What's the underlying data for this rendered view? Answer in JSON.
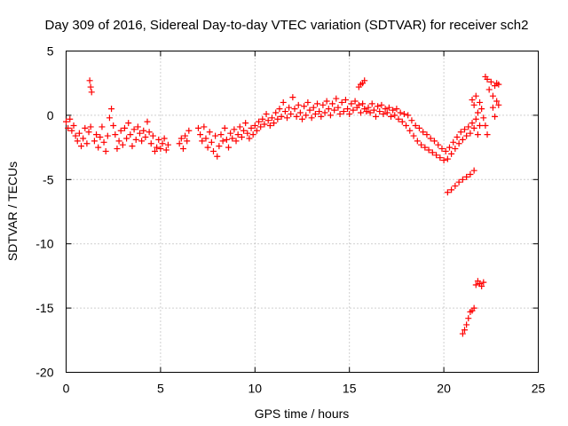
{
  "chart_data": {
    "type": "scatter",
    "title": "Day 309 of 2016, Sidereal Day-to-day VTEC variation (SDTVAR) for receiver sch2",
    "xlabel": "GPS time / hours",
    "ylabel": "SDTVAR / TECUs",
    "xlim": [
      0,
      25
    ],
    "ylim": [
      -20,
      5
    ],
    "xticks": [
      0,
      5,
      10,
      15,
      20,
      25
    ],
    "yticks": [
      5,
      0,
      -5,
      -10,
      -15,
      -20
    ],
    "grid": true,
    "marker": "plus",
    "color": "#ff0000",
    "series": [
      {
        "name": "SDTVAR",
        "values": [
          [
            0.0,
            -0.5
          ],
          [
            0.1,
            -1.0
          ],
          [
            0.2,
            -0.3
          ],
          [
            0.3,
            -1.2
          ],
          [
            0.4,
            -0.8
          ],
          [
            0.5,
            -1.6
          ],
          [
            0.6,
            -2.0
          ],
          [
            0.7,
            -1.4
          ],
          [
            0.8,
            -2.4
          ],
          [
            0.9,
            -1.8
          ],
          [
            1.0,
            -1.0
          ],
          [
            1.1,
            -2.2
          ],
          [
            1.2,
            -1.3
          ],
          [
            1.3,
            -0.9
          ],
          [
            1.25,
            2.7
          ],
          [
            1.3,
            2.2
          ],
          [
            1.35,
            1.8
          ],
          [
            1.5,
            -2.0
          ],
          [
            1.6,
            -1.5
          ],
          [
            1.7,
            -2.5
          ],
          [
            1.8,
            -1.7
          ],
          [
            1.9,
            -0.9
          ],
          [
            2.0,
            -2.1
          ],
          [
            2.1,
            -2.8
          ],
          [
            2.2,
            -1.6
          ],
          [
            2.3,
            -0.2
          ],
          [
            2.4,
            0.5
          ],
          [
            2.5,
            -0.8
          ],
          [
            2.6,
            -1.5
          ],
          [
            2.7,
            -2.6
          ],
          [
            2.8,
            -2.0
          ],
          [
            2.9,
            -1.2
          ],
          [
            3.0,
            -2.3
          ],
          [
            3.1,
            -1.0
          ],
          [
            3.2,
            -1.8
          ],
          [
            3.3,
            -0.6
          ],
          [
            3.4,
            -1.5
          ],
          [
            3.5,
            -2.4
          ],
          [
            3.6,
            -1.1
          ],
          [
            3.7,
            -1.9
          ],
          [
            3.8,
            -0.9
          ],
          [
            3.9,
            -1.4
          ],
          [
            4.0,
            -2.0
          ],
          [
            4.1,
            -1.2
          ],
          [
            4.2,
            -1.7
          ],
          [
            4.3,
            -0.5
          ],
          [
            4.4,
            -1.3
          ],
          [
            4.5,
            -2.2
          ],
          [
            4.6,
            -1.6
          ],
          [
            4.7,
            -2.8
          ],
          [
            4.8,
            -2.5
          ],
          [
            4.9,
            -1.9
          ],
          [
            5.0,
            -2.6
          ],
          [
            5.1,
            -2.2
          ],
          [
            5.2,
            -1.8
          ],
          [
            5.3,
            -2.7
          ],
          [
            5.4,
            -2.3
          ],
          [
            6.0,
            -2.2
          ],
          [
            6.1,
            -1.8
          ],
          [
            6.2,
            -2.6
          ],
          [
            6.3,
            -1.6
          ],
          [
            6.4,
            -2.0
          ],
          [
            6.5,
            -1.2
          ],
          [
            7.0,
            -1.0
          ],
          [
            7.1,
            -1.5
          ],
          [
            7.2,
            -2.0
          ],
          [
            7.3,
            -0.9
          ],
          [
            7.4,
            -1.8
          ],
          [
            7.5,
            -2.5
          ],
          [
            7.6,
            -1.3
          ],
          [
            7.7,
            -2.1
          ],
          [
            7.8,
            -2.8
          ],
          [
            7.9,
            -1.6
          ],
          [
            8.0,
            -3.2
          ],
          [
            8.1,
            -2.4
          ],
          [
            8.2,
            -1.5
          ],
          [
            8.3,
            -2.0
          ],
          [
            8.4,
            -1.0
          ],
          [
            8.5,
            -1.9
          ],
          [
            8.6,
            -2.5
          ],
          [
            8.7,
            -1.4
          ],
          [
            8.8,
            -1.8
          ],
          [
            8.9,
            -1.1
          ],
          [
            9.0,
            -2.0
          ],
          [
            9.1,
            -1.5
          ],
          [
            9.2,
            -0.9
          ],
          [
            9.3,
            -1.7
          ],
          [
            9.4,
            -1.2
          ],
          [
            9.5,
            -0.6
          ],
          [
            9.6,
            -1.4
          ],
          [
            9.7,
            -1.8
          ],
          [
            9.8,
            -1.0
          ],
          [
            9.9,
            -1.5
          ],
          [
            10.0,
            -0.8
          ],
          [
            10.1,
            -1.2
          ],
          [
            10.2,
            -0.5
          ],
          [
            10.3,
            -0.9
          ],
          [
            10.4,
            -0.3
          ],
          [
            10.5,
            -0.7
          ],
          [
            10.6,
            0.1
          ],
          [
            10.7,
            -0.4
          ],
          [
            10.8,
            -0.8
          ],
          [
            10.9,
            -0.2
          ],
          [
            11.0,
            -0.6
          ],
          [
            11.1,
            0.2
          ],
          [
            11.2,
            -0.3
          ],
          [
            11.3,
            0.5
          ],
          [
            11.4,
            -0.1
          ],
          [
            11.5,
            1.0
          ],
          [
            11.6,
            0.3
          ],
          [
            11.7,
            -0.2
          ],
          [
            11.8,
            0.6
          ],
          [
            11.9,
            0.1
          ],
          [
            12.0,
            1.4
          ],
          [
            12.1,
            0.5
          ],
          [
            12.2,
            -0.1
          ],
          [
            12.3,
            0.8
          ],
          [
            12.4,
            0.2
          ],
          [
            12.5,
            -0.3
          ],
          [
            12.6,
            0.7
          ],
          [
            12.7,
            0.0
          ],
          [
            12.8,
            1.0
          ],
          [
            12.9,
            0.4
          ],
          [
            13.0,
            -0.2
          ],
          [
            13.1,
            0.6
          ],
          [
            13.2,
            0.1
          ],
          [
            13.3,
            0.9
          ],
          [
            13.4,
            0.3
          ],
          [
            13.5,
            -0.1
          ],
          [
            13.6,
            0.8
          ],
          [
            13.7,
            0.2
          ],
          [
            13.8,
            1.1
          ],
          [
            13.9,
            0.5
          ],
          [
            14.0,
            0.0
          ],
          [
            14.1,
            0.9
          ],
          [
            14.2,
            0.4
          ],
          [
            14.3,
            1.3
          ],
          [
            14.4,
            0.6
          ],
          [
            14.5,
            0.1
          ],
          [
            14.6,
            1.0
          ],
          [
            14.7,
            0.3
          ],
          [
            14.8,
            1.2
          ],
          [
            14.9,
            0.5
          ],
          [
            15.0,
            0.1
          ],
          [
            15.1,
            0.9
          ],
          [
            15.2,
            0.4
          ],
          [
            15.3,
            1.1
          ],
          [
            15.4,
            0.6
          ],
          [
            15.5,
            0.8
          ],
          [
            15.6,
            0.2
          ],
          [
            15.7,
            0.9
          ],
          [
            15.8,
            0.5
          ],
          [
            15.9,
            0.3
          ],
          [
            15.5,
            2.2
          ],
          [
            15.6,
            2.4
          ],
          [
            15.7,
            2.5
          ],
          [
            15.8,
            2.7
          ],
          [
            16.0,
            0.6
          ],
          [
            16.1,
            0.2
          ],
          [
            16.2,
            0.9
          ],
          [
            16.3,
            0.4
          ],
          [
            16.4,
            -0.1
          ],
          [
            16.5,
            0.7
          ],
          [
            16.6,
            0.3
          ],
          [
            16.7,
            0.8
          ],
          [
            16.8,
            0.1
          ],
          [
            16.9,
            0.5
          ],
          [
            17.0,
            0.2
          ],
          [
            17.1,
            0.6
          ],
          [
            17.2,
            -0.1
          ],
          [
            17.3,
            0.4
          ],
          [
            17.4,
            0.0
          ],
          [
            17.5,
            0.5
          ],
          [
            17.6,
            -0.3
          ],
          [
            17.7,
            0.2
          ],
          [
            17.8,
            -0.5
          ],
          [
            17.9,
            0.1
          ],
          [
            18.0,
            -0.8
          ],
          [
            18.1,
            0.0
          ],
          [
            18.2,
            -1.2
          ],
          [
            18.3,
            -0.4
          ],
          [
            18.4,
            -1.6
          ],
          [
            18.5,
            -0.8
          ],
          [
            18.6,
            -2.0
          ],
          [
            18.7,
            -1.0
          ],
          [
            18.8,
            -2.3
          ],
          [
            18.9,
            -1.3
          ],
          [
            19.0,
            -2.5
          ],
          [
            19.1,
            -1.5
          ],
          [
            19.2,
            -2.7
          ],
          [
            19.3,
            -1.8
          ],
          [
            19.4,
            -2.9
          ],
          [
            19.5,
            -2.0
          ],
          [
            19.6,
            -3.1
          ],
          [
            19.7,
            -2.3
          ],
          [
            19.8,
            -3.3
          ],
          [
            19.9,
            -2.6
          ],
          [
            20.0,
            -3.5
          ],
          [
            20.1,
            -2.8
          ],
          [
            20.2,
            -3.4
          ],
          [
            20.3,
            -2.5
          ],
          [
            20.4,
            -3.0
          ],
          [
            20.5,
            -2.1
          ],
          [
            20.6,
            -2.6
          ],
          [
            20.7,
            -1.7
          ],
          [
            20.8,
            -2.2
          ],
          [
            20.9,
            -1.3
          ],
          [
            21.0,
            -1.9
          ],
          [
            21.1,
            -1.1
          ],
          [
            21.2,
            -1.6
          ],
          [
            21.3,
            -0.9
          ],
          [
            21.4,
            -1.4
          ],
          [
            21.5,
            -0.6
          ],
          [
            21.6,
            -1.0
          ],
          [
            21.7,
            -0.3
          ],
          [
            21.8,
            -1.5
          ],
          [
            21.9,
            -0.8
          ],
          [
            21.5,
            1.2
          ],
          [
            21.6,
            0.8
          ],
          [
            21.7,
            1.5
          ],
          [
            21.8,
            0.2
          ],
          [
            21.9,
            1.0
          ],
          [
            22.0,
            0.5
          ],
          [
            22.1,
            -0.2
          ],
          [
            22.2,
            -0.8
          ],
          [
            22.3,
            -1.5
          ],
          [
            22.2,
            3.0
          ],
          [
            22.3,
            2.8
          ],
          [
            22.4,
            2.0
          ],
          [
            22.5,
            2.6
          ],
          [
            22.6,
            1.5
          ],
          [
            22.7,
            2.3
          ],
          [
            22.8,
            2.5
          ],
          [
            22.9,
            2.4
          ],
          [
            22.6,
            0.6
          ],
          [
            22.7,
            -0.1
          ],
          [
            22.8,
            1.1
          ],
          [
            22.9,
            0.8
          ],
          [
            20.2,
            -6.0
          ],
          [
            20.4,
            -5.8
          ],
          [
            20.6,
            -5.5
          ],
          [
            20.8,
            -5.2
          ],
          [
            21.0,
            -5.0
          ],
          [
            21.2,
            -4.8
          ],
          [
            21.4,
            -4.6
          ],
          [
            21.6,
            -4.3
          ],
          [
            21.0,
            -17.0
          ],
          [
            21.1,
            -16.7
          ],
          [
            21.2,
            -16.3
          ],
          [
            21.3,
            -15.8
          ],
          [
            21.4,
            -15.3
          ],
          [
            21.5,
            -15.2
          ],
          [
            21.6,
            -15.0
          ],
          [
            21.7,
            -13.2
          ],
          [
            21.8,
            -12.9
          ],
          [
            21.9,
            -13.1
          ],
          [
            22.0,
            -13.3
          ],
          [
            22.1,
            -13.0
          ]
        ]
      }
    ]
  }
}
